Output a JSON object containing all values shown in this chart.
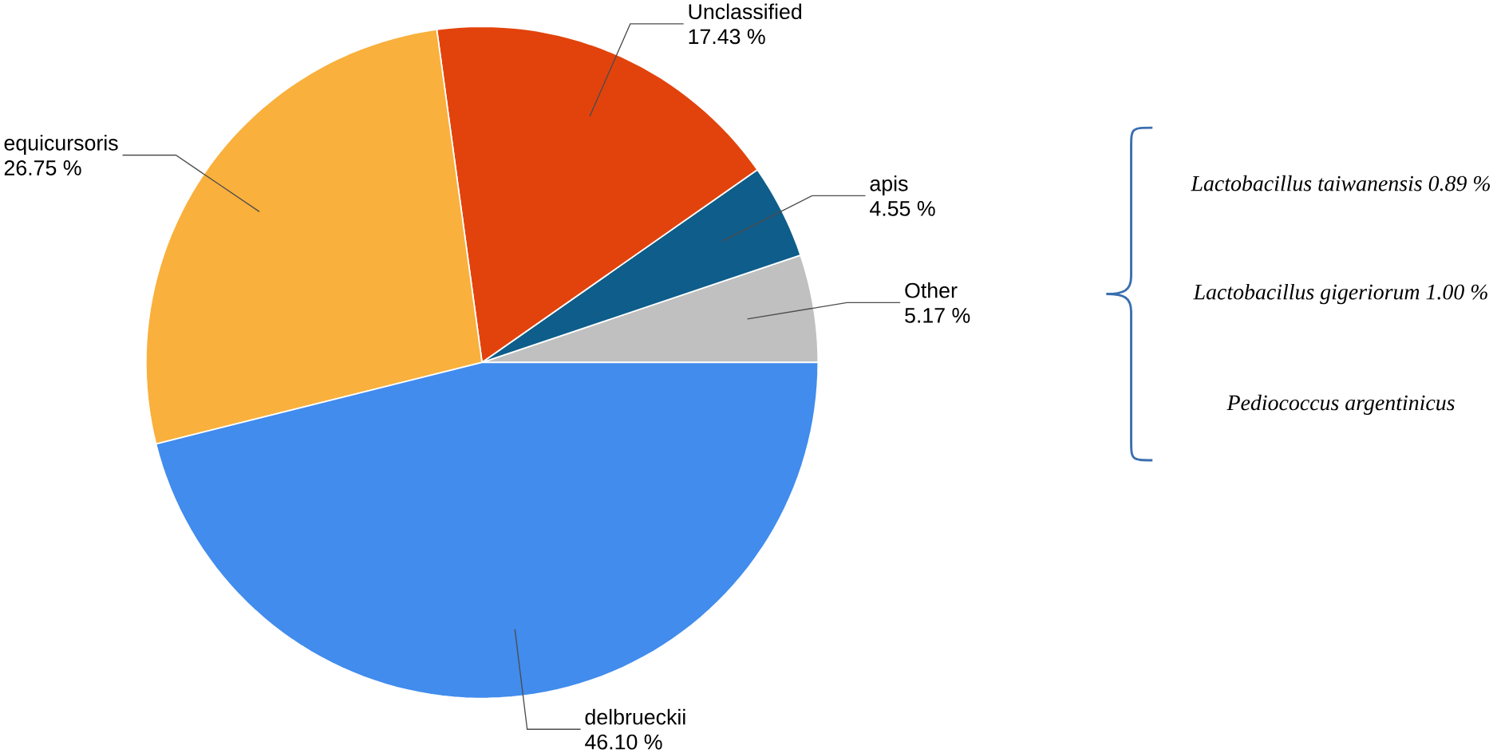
{
  "chart_data": {
    "type": "pie",
    "categories": [
      "Other",
      "apis",
      "Unclassified",
      "equicursoris",
      "delbrueckii"
    ],
    "values": [
      5.17,
      4.55,
      17.43,
      26.75,
      46.1
    ],
    "value_labels": [
      "5.17 %",
      "4.55 %",
      "17.43 %",
      "26.75 %",
      "46.10 %"
    ],
    "colors": [
      "#c0c0c0",
      "#0e5d8a",
      "#e2430c",
      "#f9b03c",
      "#418ced"
    ],
    "annotations": [
      "Lactobacillus taiwanensis 0.89 %",
      "Lactobacillus gigeriorum 1.00 %",
      "Pediococcus argentinicus"
    ]
  }
}
